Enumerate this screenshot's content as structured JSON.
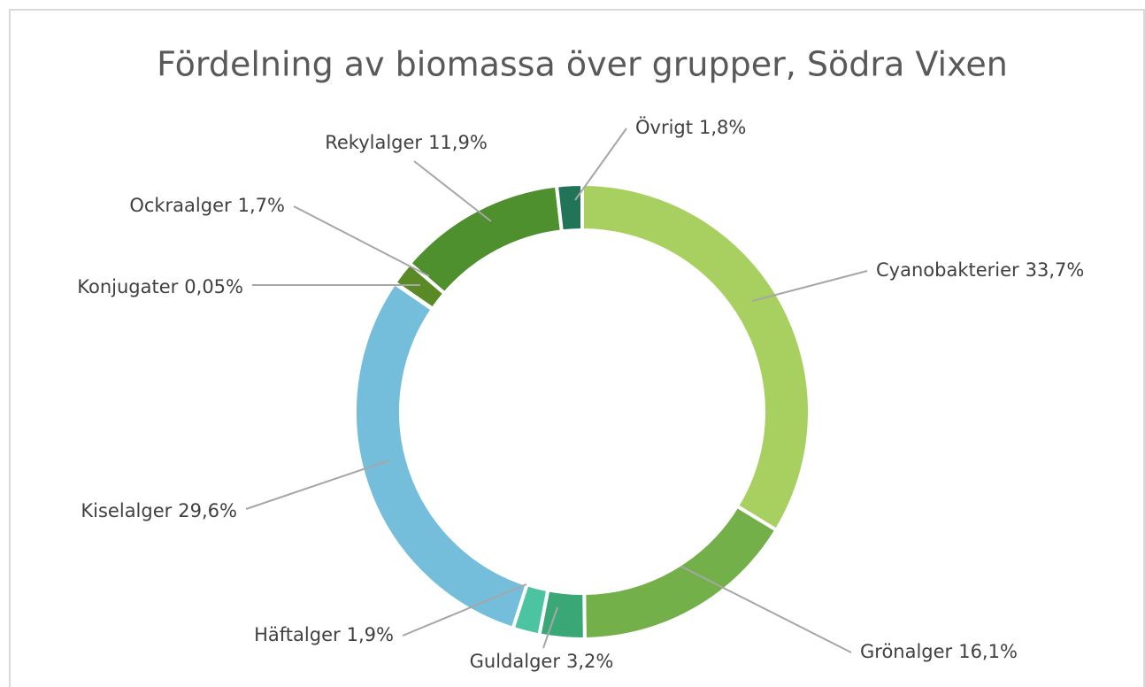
{
  "chart_data": {
    "type": "donut",
    "title": "Fördelning av biomassa över grupper, Södra Vixen",
    "categories": [
      "Cyanobakterier",
      "Grönalger",
      "Guldalger",
      "Häftalger",
      "Kiselalger",
      "Konjugater",
      "Ockraalger",
      "Rekylalger",
      "Övrigt"
    ],
    "values": [
      33.7,
      16.1,
      3.2,
      1.9,
      29.6,
      0.05,
      1.7,
      11.9,
      1.8
    ],
    "value_labels": [
      "33,7%",
      "16,1%",
      "3,2%",
      "1,9%",
      "29,6%",
      "0,05%",
      "1,7%",
      "11,9%",
      "1,8%"
    ],
    "colors": [
      "#a8d060",
      "#74b04a",
      "#3aa876",
      "#4cc4a2",
      "#74bedc",
      "#2f7f6a",
      "#5a8a26",
      "#4e8f2e",
      "#217458"
    ]
  }
}
